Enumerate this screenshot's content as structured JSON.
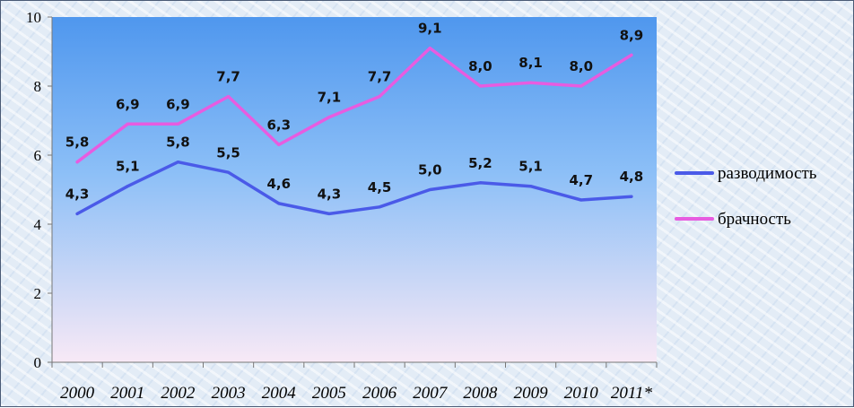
{
  "chart_data": {
    "type": "line",
    "title": "",
    "xlabel": "",
    "ylabel": "",
    "ylim": [
      0,
      10
    ],
    "yticks": [
      "0",
      "2",
      "4",
      "6",
      "8",
      "10"
    ],
    "categories": [
      "2000",
      "2001",
      "2002",
      "2003",
      "2004",
      "2005",
      "2006",
      "2007",
      "2008",
      "2009",
      "2010",
      "2011*"
    ],
    "series": [
      {
        "name": "разводимость",
        "color": "#4a5ae8",
        "values": [
          4.3,
          5.1,
          5.8,
          5.5,
          4.6,
          4.3,
          4.5,
          5.0,
          5.2,
          5.1,
          4.7,
          4.8
        ],
        "labels": [
          "4,3",
          "5,1",
          "5,8",
          "5,5",
          "4,6",
          "4,3",
          "4,5",
          "5,0",
          "5,2",
          "5,1",
          "4,7",
          "4,8"
        ]
      },
      {
        "name": "брачность",
        "color": "#e75ce0",
        "values": [
          5.8,
          6.9,
          6.9,
          7.7,
          6.3,
          7.1,
          7.7,
          9.1,
          8.0,
          8.1,
          8.0,
          8.9
        ],
        "labels": [
          "5,8",
          "6,9",
          "6,9",
          "7,7",
          "6,3",
          "7,1",
          "7,7",
          "9,1",
          "8,0",
          "8,1",
          "8,0",
          "8,9"
        ]
      }
    ],
    "grid": false,
    "legend": "right",
    "plot_background": [
      "#4f97ee",
      "#8cbff7",
      "#f8e9f6"
    ]
  }
}
